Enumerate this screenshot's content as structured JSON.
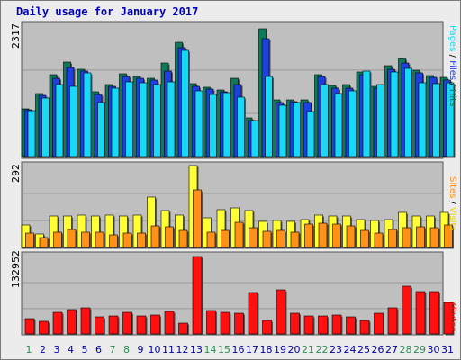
{
  "title": "Daily usage for January 2017",
  "colors": {
    "hits": "#0e7a5a",
    "files": "#1e40e0",
    "pages": "#18d8f8",
    "visits": "#ffff33",
    "sites": "#ff9018",
    "kbytes": "#ff1010",
    "weekend": "#2e8b57",
    "weekday": "#0000a0",
    "panel": "#bfbfbf"
  },
  "chart_data": {
    "type": "bar",
    "x": [
      "1",
      "2",
      "3",
      "4",
      "5",
      "6",
      "7",
      "8",
      "9",
      "10",
      "11",
      "12",
      "13",
      "14",
      "15",
      "16",
      "17",
      "18",
      "19",
      "20",
      "21",
      "22",
      "23",
      "24",
      "25",
      "26",
      "27",
      "28",
      "29",
      "30",
      "31"
    ],
    "weekend_days": [
      1,
      7,
      8,
      14,
      15,
      21,
      22,
      28,
      29
    ],
    "panels": [
      {
        "id": "hits",
        "ymax_label": "2317",
        "ymax": 2317,
        "side_label": {
          "first": "Pages",
          "second": "Files",
          "third": "Hits"
        },
        "series": [
          {
            "name": "Hits",
            "color_key": "hits",
            "values": [
              850,
              1120,
              1455,
              1670,
              1555,
              1150,
              1285,
              1465,
              1430,
              1390,
              1660,
              2035,
              1290,
              1230,
              1175,
              1390,
              685,
              2270,
              1005,
              1005,
              1005,
              1450,
              1255,
              1275,
              1495,
              1250,
              1615,
              1740,
              1530,
              1435,
              1400
            ]
          },
          {
            "name": "Files",
            "color_key": "files",
            "values": [
              835,
              1090,
              1395,
              1580,
              1525,
              1105,
              1245,
              1415,
              1395,
              1355,
              1525,
              1930,
              1250,
              1195,
              1155,
              1285,
              640,
              2100,
              965,
              975,
              965,
              1420,
              1210,
              1215,
              1455,
              1215,
              1550,
              1665,
              1480,
              1400,
              1365
            ]
          },
          {
            "name": "Pages",
            "color_key": "pages",
            "values": [
              815,
              1040,
              1285,
              1250,
              1480,
              965,
              1210,
              1330,
              1305,
              1285,
              1320,
              1880,
              1170,
              1105,
              1140,
              1055,
              640,
              1415,
              915,
              955,
              800,
              1285,
              1120,
              1160,
              1520,
              1285,
              1510,
              1560,
              1310,
              1295,
              1310
            ]
          }
        ]
      },
      {
        "id": "visits",
        "ymax_label": "292",
        "ymax": 292,
        "side_label": {
          "first": "Sites",
          "second": "Visits"
        },
        "series": [
          {
            "name": "Visits",
            "color_key": "visits",
            "values": [
              80,
              48,
              112,
              112,
              115,
              112,
              115,
              112,
              115,
              181,
              130,
              115,
              292,
              106,
              136,
              141,
              130,
              93,
              95,
              92,
              99,
              115,
              112,
              112,
              99,
              95,
              99,
              125,
              112,
              112,
              125
            ]
          },
          {
            "name": "Sites",
            "color_key": "sites",
            "values": [
              50,
              36,
              56,
              65,
              53,
              56,
              45,
              50,
              50,
              78,
              75,
              62,
              205,
              56,
              60,
              90,
              72,
              59,
              62,
              55,
              82,
              86,
              84,
              76,
              62,
              50,
              65,
              72,
              75,
              70,
              79
            ]
          }
        ]
      },
      {
        "id": "kbytes",
        "ymax_label": "132952",
        "ymax": 132952,
        "side_label": {
          "first": "KBytes"
        },
        "series": [
          {
            "name": "KBytes",
            "color_key": "kbytes",
            "values": [
              26500,
              21500,
              37000,
              42500,
              44500,
              29000,
              30500,
              37000,
              31000,
              33000,
              39000,
              19000,
              132952,
              40000,
              37000,
              35000,
              71000,
              23500,
              76000,
              35500,
              30500,
              30500,
              32500,
              29500,
              23500,
              35000,
              44500,
              82500,
              72000,
              72000,
              54000
            ]
          }
        ]
      }
    ]
  }
}
